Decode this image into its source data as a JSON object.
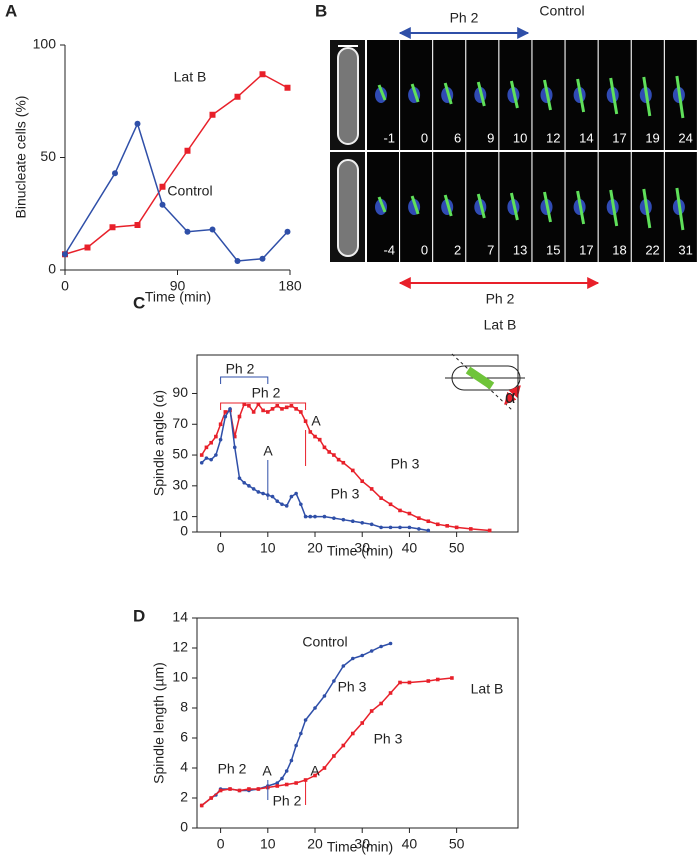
{
  "chart_data": [
    {
      "type": "line",
      "panel": "A",
      "xlabel": "Time (min)",
      "ylabel": "Binucleate cells (%)",
      "xlim": [
        0,
        180
      ],
      "ylim": [
        0,
        100
      ],
      "xticks": [
        0,
        90,
        180
      ],
      "yticks": [
        0,
        50,
        100
      ],
      "frame": false,
      "series": [
        {
          "name": "Lat B",
          "color": "#e8202a",
          "marker": "square",
          "x": [
            0,
            18,
            38,
            58,
            78,
            98,
            118,
            138,
            158,
            178
          ],
          "values": [
            7,
            10,
            19,
            20,
            37,
            53,
            69,
            77,
            87,
            81
          ]
        },
        {
          "name": "Control",
          "color": "#2f4fa8",
          "marker": "circle",
          "x": [
            0,
            40,
            58,
            78,
            98,
            118,
            138,
            158,
            178
          ],
          "values": [
            7,
            43,
            65,
            29,
            17,
            18,
            4,
            5,
            17
          ]
        }
      ],
      "annotations": []
    },
    {
      "type": "line",
      "panel": "C",
      "xlabel": "Time (min)",
      "ylabel": "Spindle angle (α)",
      "xlim": [
        -5,
        63
      ],
      "ylim": [
        0,
        115
      ],
      "xticks": [
        0,
        10,
        20,
        30,
        40,
        50
      ],
      "yticks": [
        0,
        10,
        30,
        50,
        70,
        90
      ],
      "frame": true,
      "series": [
        {
          "color": "#e8202a",
          "marker": "square",
          "x": [
            -4,
            -3,
            -2,
            -1,
            0,
            1,
            2,
            3,
            4,
            5,
            6,
            7,
            8,
            9,
            10,
            11,
            12,
            13,
            14,
            15,
            16,
            17,
            18,
            19,
            20,
            21,
            22,
            23,
            24,
            25,
            26,
            28,
            30,
            32,
            34,
            36,
            38,
            40,
            42,
            44,
            46,
            48,
            50,
            53,
            57
          ],
          "values": [
            50,
            55,
            58,
            62,
            70,
            78,
            79,
            62,
            75,
            83,
            82,
            78,
            83,
            79,
            78,
            80,
            82,
            80,
            81,
            82,
            80,
            78,
            72,
            65,
            62,
            60,
            55,
            52,
            50,
            47,
            45,
            40,
            33,
            28,
            22,
            18,
            14,
            12,
            9,
            7,
            5,
            4,
            3,
            2,
            1
          ]
        },
        {
          "color": "#2f4fa8",
          "marker": "circle",
          "x": [
            -4,
            -3,
            -2,
            -1,
            0,
            1,
            2,
            3,
            4,
            5,
            6,
            7,
            8,
            9,
            10,
            11,
            12,
            13,
            14,
            15,
            16,
            17,
            18,
            19,
            20,
            22,
            24,
            26,
            28,
            30,
            32,
            34,
            36,
            38,
            40,
            42,
            44
          ],
          "values": [
            45,
            48,
            47,
            50,
            60,
            75,
            80,
            55,
            35,
            32,
            30,
            28,
            26,
            25,
            24,
            23,
            20,
            18,
            17,
            23,
            25,
            18,
            10,
            10,
            10,
            10,
            9,
            8,
            7,
            6,
            5,
            3,
            3,
            3,
            3,
            2,
            1
          ]
        }
      ],
      "annotations": [
        {
          "text": "Ph 2",
          "color": "#2f4fa8"
        },
        {
          "text": "Ph 2",
          "color": "#e8202a"
        },
        {
          "text": "A",
          "color": "#e8202a"
        },
        {
          "text": "A",
          "color": "#2f4fa8"
        },
        {
          "text": "Ph 3",
          "color": "#e8202a"
        },
        {
          "text": "Ph 3",
          "color": "#2f4fa8"
        }
      ]
    },
    {
      "type": "line",
      "panel": "D",
      "xlabel": "Time (min)",
      "ylabel": "Spindle length (µm)",
      "xlim": [
        -5,
        63
      ],
      "ylim": [
        0,
        14
      ],
      "xticks": [
        0,
        10,
        20,
        30,
        40,
        50
      ],
      "yticks": [
        0,
        2,
        4,
        6,
        8,
        10,
        12,
        14
      ],
      "frame": true,
      "series": [
        {
          "name": "Control",
          "color": "#2f4fa8",
          "marker": "circle",
          "x": [
            -4,
            -2,
            -1,
            0,
            2,
            4,
            6,
            8,
            10,
            12,
            13,
            14,
            15,
            16,
            17,
            18,
            20,
            22,
            24,
            26,
            28,
            30,
            32,
            34,
            36
          ],
          "values": [
            1.5,
            2,
            2.2,
            2.6,
            2.6,
            2.5,
            2.5,
            2.6,
            2.8,
            3.0,
            3.3,
            3.8,
            4.5,
            5.5,
            6.3,
            7.2,
            8.0,
            8.8,
            9.8,
            10.8,
            11.3,
            11.5,
            11.8,
            12.1,
            12.3
          ]
        },
        {
          "name": "Lat B",
          "color": "#e8202a",
          "marker": "square",
          "x": [
            -4,
            -2,
            0,
            2,
            4,
            6,
            8,
            10,
            12,
            14,
            16,
            18,
            20,
            22,
            24,
            26,
            28,
            30,
            32,
            34,
            36,
            38,
            40,
            44,
            46,
            49
          ],
          "values": [
            1.5,
            2,
            2.5,
            2.6,
            2.5,
            2.6,
            2.6,
            2.7,
            2.8,
            2.9,
            3.0,
            3.2,
            3.5,
            4.0,
            4.8,
            5.5,
            6.3,
            7.0,
            7.8,
            8.3,
            9.0,
            9.7,
            9.7,
            9.8,
            9.9,
            10.0
          ]
        }
      ],
      "annotations": [
        {
          "text": "Ph 2",
          "color": "#2f4fa8"
        },
        {
          "text": "A",
          "color": "#2f4fa8"
        },
        {
          "text": "Ph 2",
          "color": "#e8202a"
        },
        {
          "text": "A",
          "color": "#e8202a"
        },
        {
          "text": "Ph 3",
          "color": "#2f4fa8"
        },
        {
          "text": "Ph 3",
          "color": "#e8202a"
        }
      ]
    }
  ],
  "panel_b": {
    "panel": "B",
    "top_label": "Control",
    "top_phase": "Ph 2",
    "top_times": [
      -1,
      0,
      6,
      9,
      10,
      12,
      14,
      17,
      19,
      24
    ],
    "bottom_phase": "Ph 2",
    "bottom_label": "Lat B",
    "bottom_times": [
      -4,
      0,
      2,
      7,
      13,
      15,
      17,
      18,
      22,
      31
    ]
  }
}
